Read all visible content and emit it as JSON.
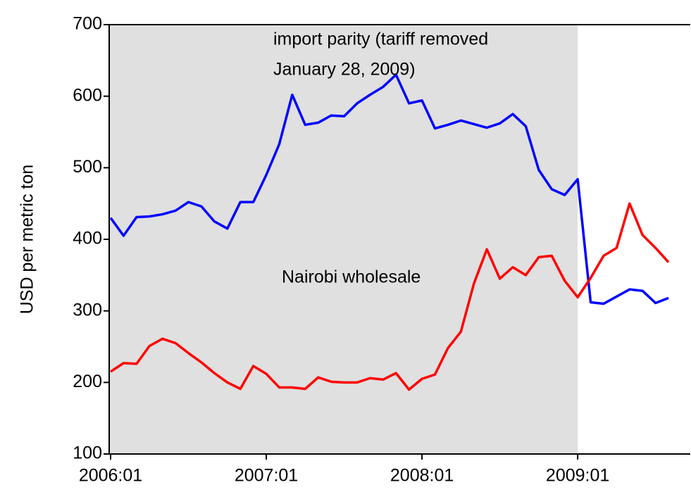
{
  "chart_data": {
    "type": "line",
    "y_label": "USD per metric ton",
    "annotations": [
      "import parity (tariff removed",
      "January 28, 2009)",
      "Nairobi wholesale"
    ],
    "categories": [
      "2006:01",
      null,
      null,
      null,
      null,
      null,
      null,
      null,
      null,
      null,
      null,
      null,
      "2007:01",
      null,
      null,
      null,
      null,
      null,
      null,
      null,
      null,
      null,
      null,
      null,
      "2008:01",
      null,
      null,
      null,
      null,
      null,
      null,
      null,
      null,
      null,
      null,
      null,
      "2009:01",
      null,
      null,
      null,
      null,
      null,
      null,
      null
    ],
    "series": [
      {
        "name": "import parity",
        "color": "#0000ff",
        "values": [
          430,
          405,
          431,
          432,
          435,
          440,
          452,
          446,
          425,
          415,
          452,
          452,
          490,
          533,
          602,
          560,
          563,
          573,
          572,
          590,
          602,
          613,
          630,
          590,
          594,
          555,
          560,
          566,
          561,
          556,
          562,
          575,
          558,
          497,
          470,
          462,
          484,
          312,
          310,
          320,
          330,
          328,
          311,
          318
        ]
      },
      {
        "name": "Nairobi wholesale",
        "color": "#ff0000",
        "values": [
          215,
          227,
          226,
          251,
          261,
          255,
          241,
          228,
          213,
          200,
          191,
          223,
          212,
          193,
          193,
          191,
          207,
          201,
          200,
          200,
          206,
          204,
          213,
          190,
          205,
          211,
          248,
          271,
          338,
          386,
          345,
          361,
          350,
          375,
          377,
          342,
          319,
          346,
          377,
          388,
          450,
          406,
          388,
          368
        ]
      }
    ],
    "shade": {
      "from": 0,
      "to": 36,
      "color": "#e0e0e0"
    },
    "ylim": [
      100,
      700
    ],
    "yticks": [
      100,
      200,
      300,
      400,
      500,
      600,
      700
    ]
  }
}
